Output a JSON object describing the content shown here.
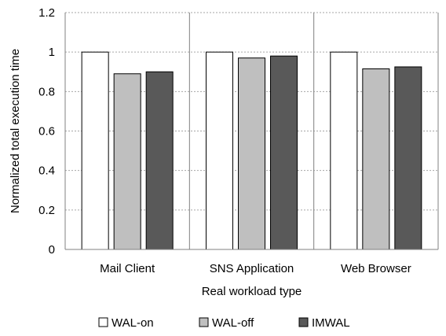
{
  "chart_data": {
    "type": "bar",
    "categories": [
      "Mail Client",
      "SNS Application",
      "Web Browser"
    ],
    "series": [
      {
        "name": "WAL-on",
        "values": [
          1.0,
          1.0,
          1.0
        ],
        "color": "#ffffff"
      },
      {
        "name": "WAL-off",
        "values": [
          0.89,
          0.97,
          0.915
        ],
        "color": "#bfbfbf"
      },
      {
        "name": "IMWAL",
        "values": [
          0.9,
          0.98,
          0.925
        ],
        "color": "#595959"
      }
    ],
    "xlabel": "Real workload type",
    "ylabel": "Normalized total execution time",
    "ylim": [
      0,
      1.2
    ],
    "yticks": [
      "0",
      "0.2",
      "0.4",
      "0.6",
      "0.8",
      "1",
      "1.2"
    ],
    "grid": true,
    "legend_position": "bottom"
  }
}
